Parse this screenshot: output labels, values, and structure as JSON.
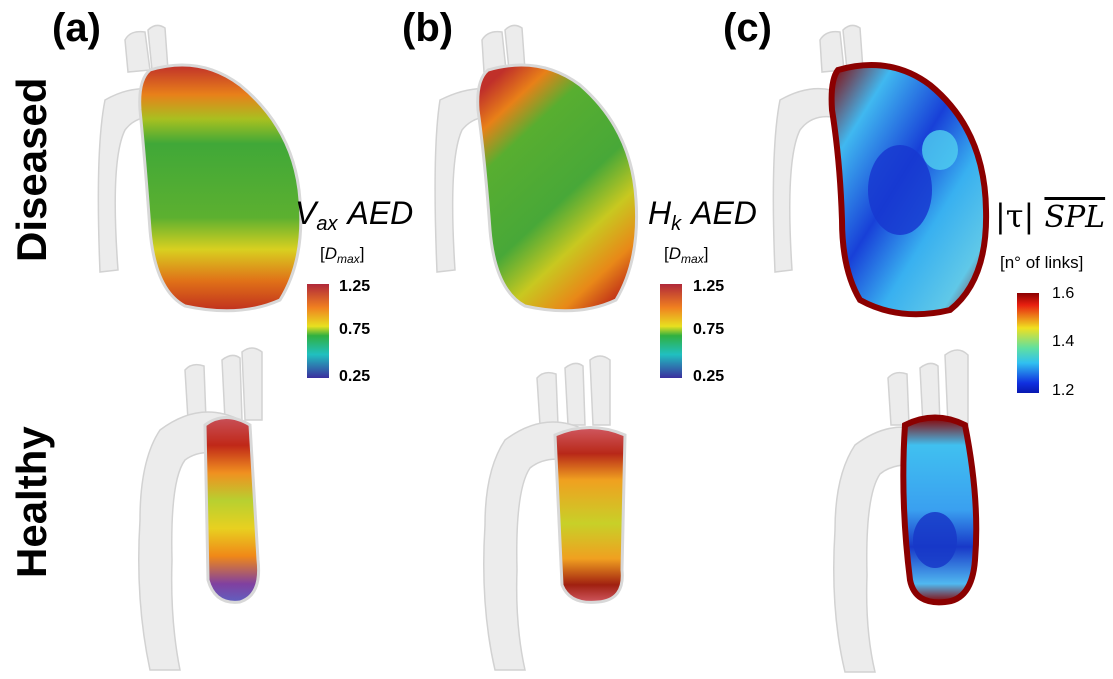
{
  "panels": {
    "a": "(a)",
    "b": "(b)",
    "c": "(c)"
  },
  "rows": {
    "diseased": "Diseased",
    "healthy": "Healthy"
  },
  "legend_a": {
    "metric_main": "V",
    "metric_sub": "ax",
    "metric_suffix": "AED",
    "unit_open": "[",
    "unit_main": "D",
    "unit_sub": "max",
    "unit_close": "]",
    "ticks": [
      "1.25",
      "0.75",
      "0.25"
    ]
  },
  "legend_b": {
    "metric_main": "H",
    "metric_sub": "k",
    "metric_suffix": "AED",
    "unit_open": "[",
    "unit_main": "D",
    "unit_sub": "max",
    "unit_close": "]",
    "ticks": [
      "1.25",
      "0.75",
      "0.25"
    ]
  },
  "legend_c": {
    "metric_tau": "|τ|",
    "metric_spl": "SPL",
    "unit": "[n° of links]",
    "ticks": [
      "1.6",
      "1.4",
      "1.2"
    ]
  },
  "colors": {
    "jet_low": "#3b2f9e",
    "jet_mid": "#22b04a",
    "jet_high": "#b0283a",
    "aorta_shell": "#e8e8e8",
    "tau_low": "#1030e0",
    "tau_high": "#8b0000"
  }
}
